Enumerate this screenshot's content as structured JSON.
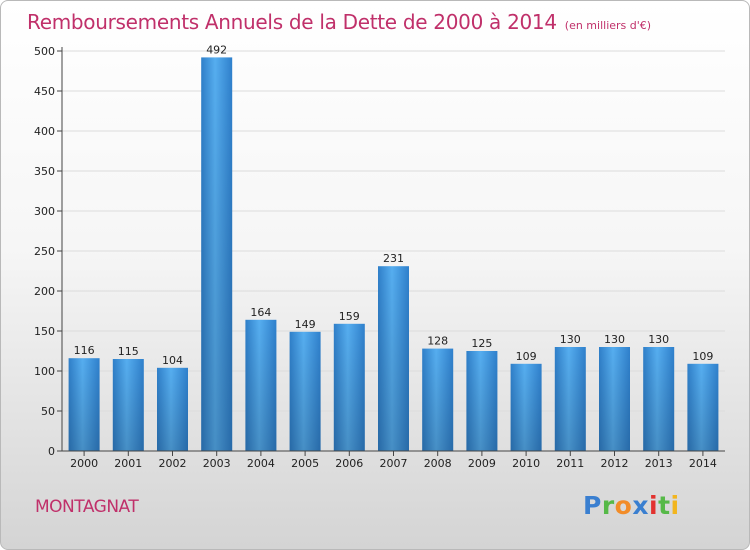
{
  "chart_data": {
    "type": "bar",
    "title": "Remboursements Annuels de la Dette de 2000 à 2014",
    "subtitle": "(en milliers d'€)",
    "categories": [
      "2000",
      "2001",
      "2002",
      "2003",
      "2004",
      "2005",
      "2006",
      "2007",
      "2008",
      "2009",
      "2010",
      "2011",
      "2012",
      "2013",
      "2014"
    ],
    "values": [
      116,
      115,
      104,
      492,
      164,
      149,
      159,
      231,
      128,
      125,
      109,
      130,
      130,
      130,
      109
    ],
    "ylim": [
      0,
      500
    ],
    "yticks": [
      0,
      50,
      100,
      150,
      200,
      250,
      300,
      350,
      400,
      450,
      500
    ],
    "grid": true,
    "bar_color": "#3a8fd8",
    "title_color": "#c0306a"
  },
  "footer": {
    "commune": "MONTAGNAT",
    "logo": [
      "P",
      "r",
      "o",
      "x",
      "i",
      "t",
      "i"
    ]
  }
}
